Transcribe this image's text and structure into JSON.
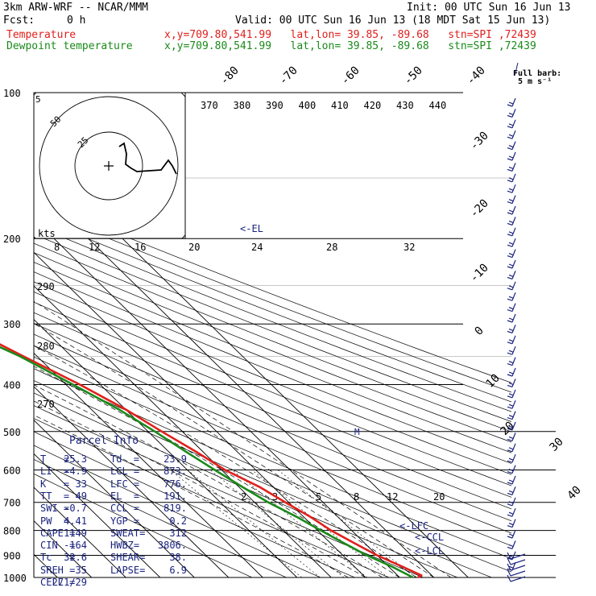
{
  "header": {
    "model": "3km ARW-WRF -- NCAR/MMM",
    "init": "Init: 00 UTC Sun 16 Jun 13",
    "fcst_label": "Fcst:",
    "fcst_value": "0 h",
    "valid": "Valid: 00 UTC Sun 16 Jun 13 (18 MDT Sat 15 Jun 13)",
    "temp_label": "Temperature",
    "dew_label": "Dewpoint temperature",
    "loc_temp": "x,y=709.80,541.99   lat,lon= 39.85, -89.68   stn=SPI ,72439",
    "loc_dew": "x,y=709.80,541.99   lat,lon= 39.85, -89.68   stn=SPI ,72439"
  },
  "colors": {
    "temperature": "#e0201c",
    "dewpoint": "#1a8a1a",
    "parcel_text": "#1a237e",
    "barbs": "#1a237e"
  },
  "chart_data": {
    "type": "line",
    "title": "",
    "pressure_levels_hpa": [
      100,
      200,
      300,
      400,
      500,
      600,
      700,
      800,
      900,
      1000
    ],
    "temperature_isotherm_labels_c": [
      "-80",
      "-70",
      "-60",
      "-50",
      "-40",
      "-30",
      "-20",
      "-10",
      "0",
      "10",
      "20",
      "30",
      "40"
    ],
    "theta_e_labels_k": [
      "370",
      "380",
      "390",
      "400",
      "410",
      "420",
      "430",
      "440"
    ],
    "dry_adiabat_labels_k": [
      "290",
      "280",
      "270"
    ],
    "mixing_ratio_labels": [
      "2",
      "3",
      "5",
      "8",
      "12",
      "20"
    ],
    "hodograph": {
      "units_label": "kts",
      "ring_labels": [
        "25",
        "50"
      ],
      "axis_ticks": [
        "8",
        "12",
        "16",
        "20",
        "24",
        "28",
        "32"
      ]
    },
    "barb_legend": {
      "title": "Full barb:",
      "value": "5 m s⁻¹"
    },
    "level_markers": [
      "<-EL",
      "<-LFC",
      "<-CCL",
      "<-LCL",
      "M"
    ],
    "series": [
      {
        "name": "Temperature",
        "color": "#e0201c",
        "points": [
          [
            100,
            -65
          ],
          [
            120,
            -62
          ],
          [
            150,
            -60
          ],
          [
            175,
            -60
          ],
          [
            200,
            -57
          ],
          [
            250,
            -44
          ],
          [
            300,
            -33
          ],
          [
            350,
            -24
          ],
          [
            400,
            -16
          ],
          [
            450,
            -10
          ],
          [
            500,
            -6
          ],
          [
            550,
            -2
          ],
          [
            600,
            1
          ],
          [
            650,
            6
          ],
          [
            700,
            9
          ],
          [
            750,
            12
          ],
          [
            800,
            14
          ],
          [
            850,
            17
          ],
          [
            900,
            20
          ],
          [
            950,
            24
          ],
          [
            990,
            27
          ],
          [
            1000,
            25.3
          ]
        ]
      },
      {
        "name": "Dewpoint temperature",
        "color": "#1a8a1a",
        "points": [
          [
            100,
            -78
          ],
          [
            120,
            -76
          ],
          [
            150,
            -75
          ],
          [
            175,
            -76
          ],
          [
            200,
            -69
          ],
          [
            250,
            -50
          ],
          [
            300,
            -36
          ],
          [
            350,
            -25
          ],
          [
            400,
            -18
          ],
          [
            450,
            -12
          ],
          [
            500,
            -8
          ],
          [
            550,
            -5
          ],
          [
            600,
            -2
          ],
          [
            650,
            1
          ],
          [
            700,
            4
          ],
          [
            750,
            8
          ],
          [
            800,
            11
          ],
          [
            850,
            14
          ],
          [
            900,
            17
          ],
          [
            950,
            21
          ],
          [
            1000,
            23.9
          ]
        ]
      }
    ]
  },
  "parcel": {
    "title": "Parcel Info",
    "rows": [
      [
        "T   =",
        "25.3",
        "Td  =",
        "23.9"
      ],
      [
        "LI  =",
        "-4.9",
        "LCL =",
        "873."
      ],
      [
        "K   =",
        "33",
        "LFC =",
        "776."
      ],
      [
        "TT  =",
        "49",
        "EL  =",
        "191."
      ],
      [
        "SWI =",
        "-0.7",
        "CCL =",
        "819."
      ],
      [
        "PW  =",
        "4.41",
        "YGP =",
        "0.2"
      ],
      [
        "CAPE =",
        "1149",
        "SWEAT=",
        "312"
      ],
      [
        "CIN  =",
        "-164",
        "HWBZ=",
        "3806."
      ],
      [
        "Tc   =",
        "32.6",
        "SHEAR=",
        "38."
      ],
      [
        "SREH =",
        "35",
        "LAPSE=",
        "6.9"
      ],
      [
        "CELL =",
        "271/29",
        "",
        ""
      ]
    ]
  }
}
